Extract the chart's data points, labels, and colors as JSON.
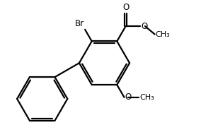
{
  "background_color": "#ffffff",
  "line_color": "#000000",
  "line_width": 1.6,
  "text_color": "#000000",
  "font_size": 8.5,
  "figsize": [
    2.84,
    1.94
  ],
  "dpi": 100,
  "xlim": [
    0,
    10
  ],
  "ylim": [
    0,
    7
  ]
}
